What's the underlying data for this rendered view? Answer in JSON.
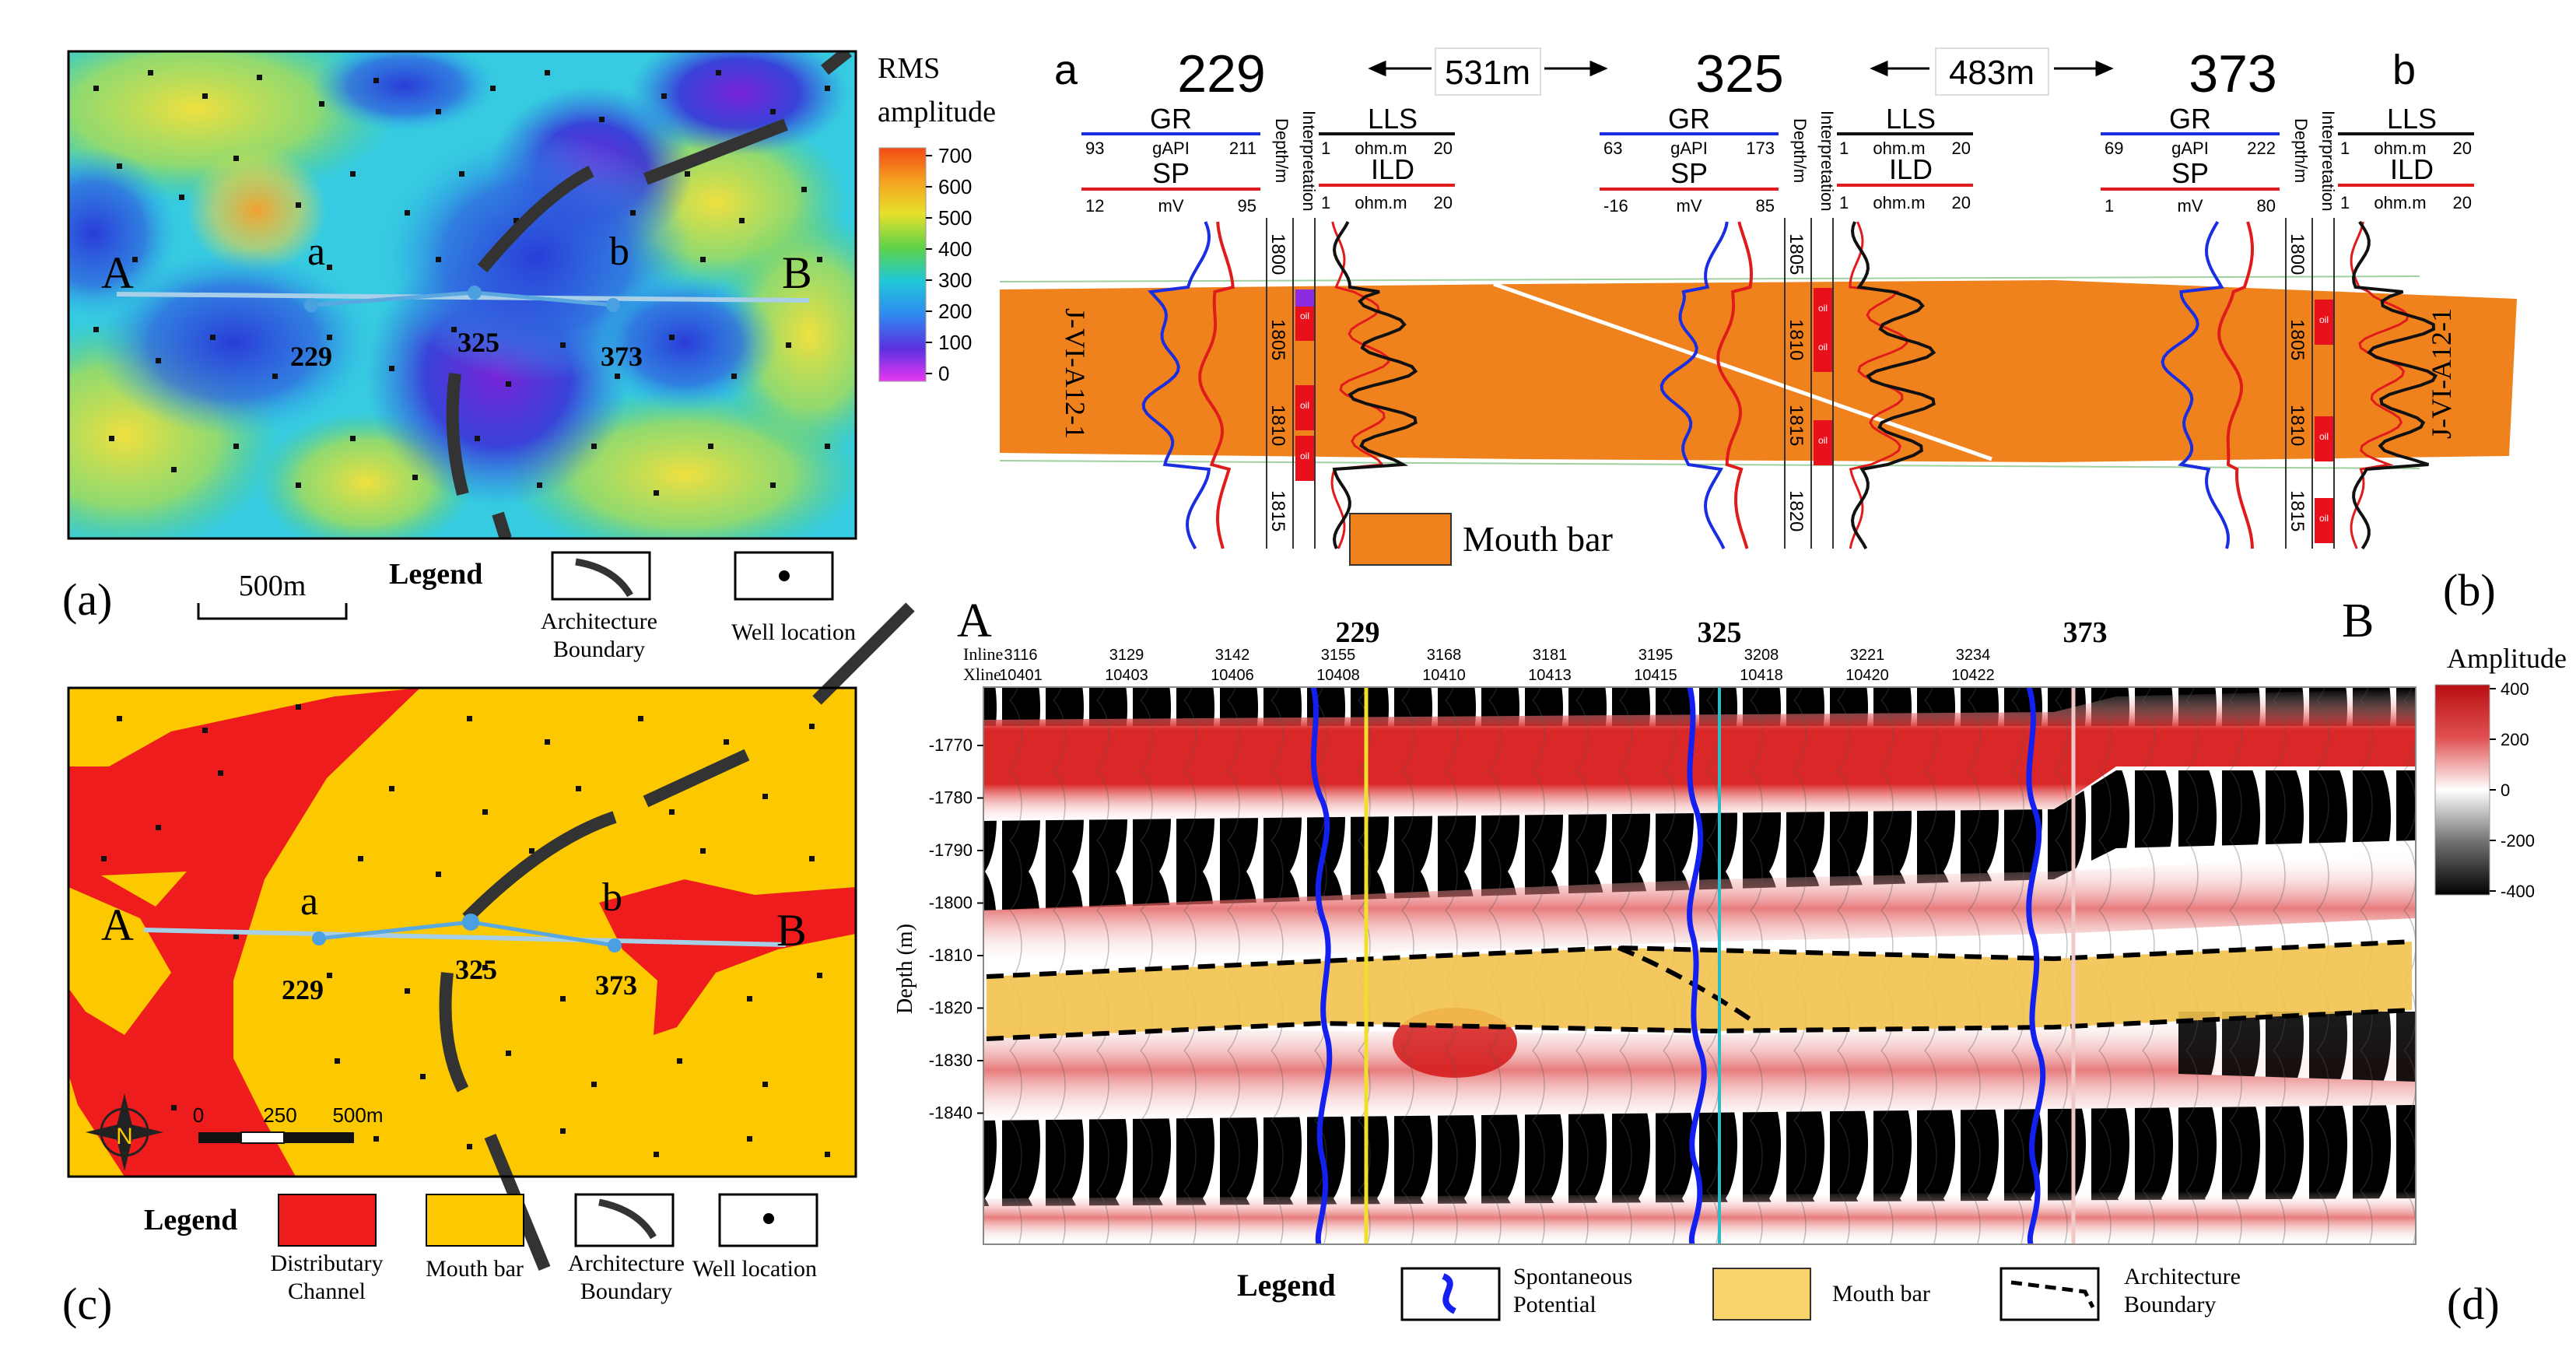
{
  "figure": {
    "panel_labels": [
      "(a)",
      "(b)",
      "(c)",
      "(d)"
    ]
  },
  "panel_a": {
    "colorbar_title_line1": "RMS",
    "colorbar_title_line2": "amplitude",
    "colorbar_ticks": [
      "700",
      "600",
      "500",
      "400",
      "300",
      "200",
      "100",
      "0"
    ],
    "colorbar_values": [
      700,
      600,
      500,
      400,
      300,
      200,
      100,
      0
    ],
    "point_A": "A",
    "point_B": "B",
    "point_a": "a",
    "point_b": "b",
    "wells": [
      "229",
      "325",
      "373"
    ],
    "scale_label": "500m",
    "legend_title": "Legend",
    "legend_boundary": "Architecture Boundary",
    "legend_well": "Well location"
  },
  "panel_b": {
    "end_left": "a",
    "end_right": "b",
    "wells": [
      "229",
      "325",
      "373"
    ],
    "spacings": [
      "531m",
      "483m"
    ],
    "curve_GR": "GR",
    "curve_SP": "SP",
    "curve_LLS": "LLS",
    "curve_ILD": "ILD",
    "track_depth": "Depth/m",
    "track_interp": "Interpretation",
    "gr_scales": [
      {
        "min": "93",
        "unit": "gAPI",
        "max": "211"
      },
      {
        "min": "63",
        "unit": "gAPI",
        "max": "173"
      },
      {
        "min": "69",
        "unit": "gAPI",
        "max": "222"
      }
    ],
    "sp_scales": [
      {
        "min": "12",
        "unit": "mV",
        "max": "95"
      },
      {
        "min": "-16",
        "unit": "mV",
        "max": "85"
      },
      {
        "min": "1",
        "unit": "mV",
        "max": "80"
      }
    ],
    "res_scale": {
      "min": "1",
      "unit": "ohm.m",
      "max": "20"
    },
    "depths": [
      [
        "1800",
        "1805",
        "1810",
        "1815"
      ],
      [
        "1805",
        "1810",
        "1815",
        "1820"
      ],
      [
        "1800",
        "1805",
        "1810",
        "1815"
      ]
    ],
    "oil_label": "oil",
    "layer_name": "J-VI-A12-1",
    "legend_mouth_bar": "Mouth bar"
  },
  "panel_c": {
    "point_A": "A",
    "point_B": "B",
    "point_a": "a",
    "point_b": "b",
    "wells": [
      "229",
      "325",
      "373"
    ],
    "scale_ticks": [
      "0",
      "250",
      "500m"
    ],
    "north_label": "N",
    "legend_title": "Legend",
    "legend_channel": "Distributary Channel",
    "legend_mouth_bar": "Mouth bar",
    "legend_boundary": "Architecture Boundary",
    "legend_well": "Well location",
    "colors": {
      "channel": "#ee1c1c",
      "mouth_bar": "#fcc800"
    }
  },
  "panel_d": {
    "end_left": "A",
    "end_right": "B",
    "wells": [
      "229",
      "325",
      "373"
    ],
    "inline_label": "Inline",
    "xline_label": "Xline",
    "inlines": [
      "3116",
      "3129",
      "3142",
      "3155",
      "3168",
      "3181",
      "3195",
      "3208",
      "3221",
      "3234"
    ],
    "xlines": [
      "10401",
      "10403",
      "10406",
      "10408",
      "10410",
      "10413",
      "10415",
      "10418",
      "10420",
      "10422"
    ],
    "depth_axis_title": "Depth (m)",
    "depth_ticks": [
      "-1770",
      "-1780",
      "-1790",
      "-1800",
      "-1810",
      "-1820",
      "-1830",
      "-1840"
    ],
    "amp_title": "Amplitude",
    "amp_ticks": [
      "400",
      "200",
      "0",
      "-200",
      "-400"
    ],
    "amp_values": [
      400,
      200,
      0,
      -200,
      -400
    ],
    "legend_title": "Legend",
    "legend_sp": "Spontaneous Potential",
    "legend_mouth_bar": "Mouth bar",
    "legend_boundary": "Architecture Boundary"
  }
}
